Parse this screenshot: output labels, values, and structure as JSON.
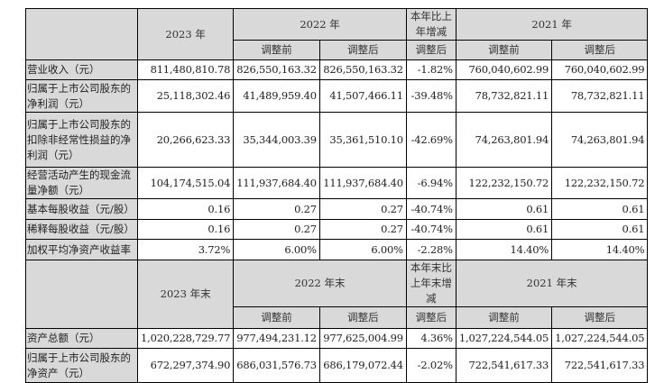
{
  "header1": {
    "y2023": "2023 年",
    "y2022": "2022 年",
    "change": "本年比上年增减",
    "y2021": "2021 年",
    "before": "调整前",
    "after": "调整后"
  },
  "header2": {
    "y2023": "2023 年末",
    "y2022": "2022 年末",
    "change": "本年末比上年末增减",
    "y2021": "2021 年末",
    "before": "调整前",
    "after": "调整后"
  },
  "rows1": [
    {
      "label": "营业收入（元）",
      "v": [
        "811,480,810.78",
        "826,550,163.32",
        "826,550,163.32",
        "-1.82%",
        "760,040,602.99",
        "760,040,602.99"
      ]
    },
    {
      "label": "归属于上市公司股东的净利润（元）",
      "v": [
        "25,118,302.46",
        "41,489,959.40",
        "41,507,466.11",
        "-39.48%",
        "78,732,821.11",
        "78,732,821.11"
      ]
    },
    {
      "label": "归属于上市公司股东的扣除非经常性损益的净利润（元）",
      "v": [
        "20,266,623.33",
        "35,344,003.39",
        "35,361,510.10",
        "-42.69%",
        "74,263,801.94",
        "74,263,801.94"
      ]
    },
    {
      "label": "经营活动产生的现金流量净额（元）",
      "v": [
        "104,174,515.04",
        "111,937,684.40",
        "111,937,684.40",
        "-6.94%",
        "122,232,150.72",
        "122,232,150.72"
      ]
    },
    {
      "label": "基本每股收益（元/股）",
      "v": [
        "0.16",
        "0.27",
        "0.27",
        "-40.74%",
        "0.61",
        "0.61"
      ]
    },
    {
      "label": "稀释每股收益（元/股）",
      "v": [
        "0.16",
        "0.27",
        "0.27",
        "-40.74%",
        "0.61",
        "0.61"
      ]
    },
    {
      "label": "加权平均净资产收益率",
      "v": [
        "3.72%",
        "6.00%",
        "6.00%",
        "-2.28%",
        "14.40%",
        "14.40%"
      ]
    }
  ],
  "rows2": [
    {
      "label": "资产总额（元）",
      "v": [
        "1,020,228,729.77",
        "977,494,231.12",
        "977,625,004.99",
        "4.36%",
        "1,027,224,544.05",
        "1,027,224,544.05"
      ]
    },
    {
      "label": "归属于上市公司股东的净资产（元）",
      "v": [
        "672,297,374.90",
        "686,031,576.73",
        "686,179,072.44",
        "-2.02%",
        "722,541,617.33",
        "722,541,617.33"
      ]
    }
  ]
}
